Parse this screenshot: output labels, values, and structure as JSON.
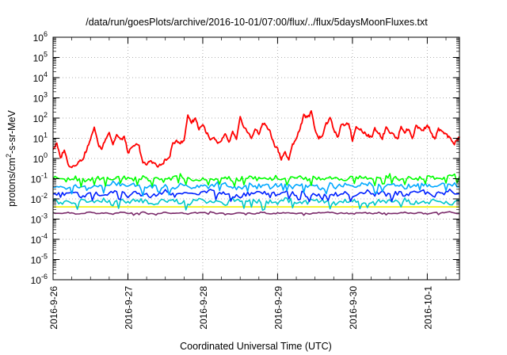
{
  "chart_data": {
    "type": "line",
    "title": "/data/run/goesPlots/archive/2016-10-01/07:00/flux/../flux/5daysMoonFluxes.txt",
    "xlabel": "Coordinated Universal Time (UTC)",
    "ylabel_parts": [
      "protons/cm",
      "2",
      "-s-sr-MeV"
    ],
    "y_scale": "log",
    "ylim_exponents": [
      -6,
      6
    ],
    "y_tick_base": "10",
    "y_tick_exponents": [
      "-6",
      "-5",
      "-4",
      "-3",
      "-2",
      "-1",
      "0",
      "1",
      "2",
      "3",
      "4",
      "5",
      "6"
    ],
    "x_unit": "day",
    "xlim": [
      0,
      5.43
    ],
    "x_ticks": [
      {
        "day": 0,
        "label": "2016-9-26"
      },
      {
        "day": 1,
        "label": "2016-9-27"
      },
      {
        "day": 2,
        "label": "2016-9-28"
      },
      {
        "day": 3,
        "label": "2016-9-29"
      },
      {
        "day": 4,
        "label": "2016-9-30"
      },
      {
        "day": 5,
        "label": "2016-10-1"
      }
    ],
    "grid": true,
    "series": [
      {
        "color": "#ff0000",
        "x": [
          0,
          0.05,
          0.1,
          0.15,
          0.2,
          0.25,
          0.3,
          0.35,
          0.4,
          0.45,
          0.5,
          0.55,
          0.6,
          0.65,
          0.7,
          0.75,
          0.8,
          0.85,
          0.9,
          0.95,
          1.0,
          1.05,
          1.1,
          1.15,
          1.2,
          1.25,
          1.3,
          1.35,
          1.4,
          1.45,
          1.5,
          1.55,
          1.6,
          1.65,
          1.7,
          1.75,
          1.8,
          1.85,
          1.9,
          1.95,
          2.0,
          2.05,
          2.1,
          2.15,
          2.2,
          2.25,
          2.3,
          2.35,
          2.4,
          2.45,
          2.5,
          2.55,
          2.6,
          2.65,
          2.7,
          2.75,
          2.8,
          2.85,
          2.9,
          2.95,
          3.0,
          3.05,
          3.1,
          3.15,
          3.2,
          3.25,
          3.3,
          3.35,
          3.4,
          3.45,
          3.5,
          3.55,
          3.6,
          3.65,
          3.7,
          3.75,
          3.8,
          3.85,
          3.9,
          3.95,
          4.0,
          4.05,
          4.1,
          4.15,
          4.2,
          4.25,
          4.3,
          4.35,
          4.4,
          4.45,
          4.5,
          4.55,
          4.6,
          4.65,
          4.7,
          4.75,
          4.8,
          4.85,
          4.9,
          4.95,
          5.0,
          5.05,
          5.1,
          5.15,
          5.2,
          5.25,
          5.3,
          5.35,
          5.4,
          5.43
        ],
        "y": [
          3,
          5,
          1,
          3,
          0.5,
          0.4,
          0.5,
          0.7,
          1,
          3,
          8,
          40,
          5,
          3,
          10,
          20,
          5,
          15,
          8,
          12,
          2,
          3,
          5,
          4,
          0.6,
          0.5,
          0.8,
          0.6,
          0.4,
          0.5,
          0.8,
          1,
          5,
          8,
          6,
          7,
          150,
          60,
          100,
          30,
          50,
          20,
          8,
          10,
          5,
          8,
          15,
          6,
          20,
          8,
          100,
          40,
          20,
          10,
          30,
          15,
          60,
          40,
          20,
          5,
          3,
          1,
          2,
          0.8,
          5,
          10,
          30,
          150,
          100,
          200,
          30,
          10,
          15,
          50,
          100,
          30,
          10,
          40,
          50,
          60,
          8,
          40,
          30,
          20,
          15,
          10,
          30,
          20,
          10,
          40,
          20,
          15,
          8,
          40,
          20,
          30,
          10,
          40,
          30,
          25,
          50,
          20,
          8,
          30,
          20,
          15,
          10,
          5,
          8,
          12
        ],
        "spike_low": true
      },
      {
        "color": "#00ff00",
        "x": [
          0,
          0.1,
          0.2,
          0.3,
          0.4,
          0.5,
          0.6,
          0.7,
          0.8,
          0.9,
          1.0,
          1.1,
          1.2,
          1.3,
          1.4,
          1.5,
          1.6,
          1.7,
          1.8,
          1.9,
          2.0,
          2.1,
          2.2,
          2.3,
          2.4,
          2.5,
          2.6,
          2.7,
          2.8,
          2.9,
          3.0,
          3.1,
          3.2,
          3.3,
          3.4,
          3.5,
          3.6,
          3.7,
          3.8,
          3.9,
          4.0,
          4.1,
          4.2,
          4.3,
          4.4,
          4.5,
          4.6,
          4.7,
          4.8,
          4.9,
          5.0,
          5.1,
          5.2,
          5.3,
          5.43
        ],
        "y": [
          0.12,
          0.1,
          0.09,
          0.11,
          0.08,
          0.1,
          0.12,
          0.09,
          0.1,
          0.13,
          0.11,
          0.1,
          0.12,
          0.09,
          0.11,
          0.08,
          0.12,
          0.14,
          0.1,
          0.09,
          0.12,
          0.1,
          0.11,
          0.13,
          0.09,
          0.1,
          0.12,
          0.11,
          0.09,
          0.1,
          0.12,
          0.11,
          0.1,
          0.13,
          0.09,
          0.11,
          0.1,
          0.12,
          0.1,
          0.09,
          0.12,
          0.13,
          0.11,
          0.1,
          0.12,
          0.14,
          0.1,
          0.11,
          0.12,
          0.1,
          0.13,
          0.11,
          0.12,
          0.14,
          0.13
        ],
        "dips": true
      },
      {
        "color": "#00a8ff",
        "x": [
          0,
          0.1,
          0.2,
          0.3,
          0.4,
          0.5,
          0.6,
          0.7,
          0.8,
          0.9,
          1.0,
          1.1,
          1.2,
          1.3,
          1.4,
          1.5,
          1.6,
          1.7,
          1.8,
          1.9,
          2.0,
          2.1,
          2.2,
          2.3,
          2.4,
          2.5,
          2.6,
          2.7,
          2.8,
          2.9,
          3.0,
          3.1,
          3.2,
          3.3,
          3.4,
          3.5,
          3.6,
          3.7,
          3.8,
          3.9,
          4.0,
          4.1,
          4.2,
          4.3,
          4.4,
          4.5,
          4.6,
          4.7,
          4.8,
          4.9,
          5.0,
          5.1,
          5.2,
          5.3,
          5.43
        ],
        "y": [
          0.05,
          0.04,
          0.03,
          0.05,
          0.04,
          0.03,
          0.05,
          0.04,
          0.06,
          0.05,
          0.04,
          0.05,
          0.03,
          0.04,
          0.05,
          0.04,
          0.03,
          0.05,
          0.04,
          0.04,
          0.05,
          0.04,
          0.06,
          0.05,
          0.04,
          0.03,
          0.05,
          0.04,
          0.05,
          0.04,
          0.05,
          0.06,
          0.04,
          0.05,
          0.04,
          0.05,
          0.03,
          0.05,
          0.04,
          0.05,
          0.04,
          0.05,
          0.06,
          0.04,
          0.05,
          0.04,
          0.05,
          0.04,
          0.05,
          0.06,
          0.05,
          0.04,
          0.05,
          0.06,
          0.04
        ],
        "dips": true
      },
      {
        "color": "#0020ff",
        "x": [
          0,
          0.1,
          0.2,
          0.3,
          0.4,
          0.5,
          0.6,
          0.7,
          0.8,
          0.9,
          1.0,
          1.1,
          1.2,
          1.3,
          1.4,
          1.5,
          1.6,
          1.7,
          1.8,
          1.9,
          2.0,
          2.1,
          2.2,
          2.3,
          2.4,
          2.5,
          2.6,
          2.7,
          2.8,
          2.9,
          3.0,
          3.1,
          3.2,
          3.3,
          3.4,
          3.5,
          3.6,
          3.7,
          3.8,
          3.9,
          4.0,
          4.1,
          4.2,
          4.3,
          4.4,
          4.5,
          4.6,
          4.7,
          4.8,
          4.9,
          5.0,
          5.1,
          5.2,
          5.3,
          5.43
        ],
        "y": [
          0.02,
          0.015,
          0.025,
          0.02,
          0.012,
          0.018,
          0.02,
          0.015,
          0.025,
          0.02,
          0.015,
          0.02,
          0.018,
          0.012,
          0.02,
          0.025,
          0.015,
          0.02,
          0.018,
          0.015,
          0.02,
          0.025,
          0.018,
          0.02,
          0.015,
          0.012,
          0.02,
          0.018,
          0.02,
          0.015,
          0.02,
          0.025,
          0.018,
          0.02,
          0.015,
          0.02,
          0.012,
          0.02,
          0.018,
          0.02,
          0.015,
          0.02,
          0.025,
          0.018,
          0.02,
          0.015,
          0.02,
          0.018,
          0.02,
          0.025,
          0.02,
          0.015,
          0.02,
          0.025,
          0.018
        ],
        "dips": true
      },
      {
        "color": "#00c8c8",
        "x": [
          0,
          0.1,
          0.2,
          0.3,
          0.4,
          0.5,
          0.6,
          0.7,
          0.8,
          0.9,
          1.0,
          1.1,
          1.2,
          1.3,
          1.4,
          1.5,
          1.6,
          1.7,
          1.8,
          1.9,
          2.0,
          2.1,
          2.2,
          2.3,
          2.4,
          2.5,
          2.6,
          2.7,
          2.8,
          2.9,
          3.0,
          3.1,
          3.2,
          3.3,
          3.4,
          3.5,
          3.6,
          3.7,
          3.8,
          3.9,
          4.0,
          4.1,
          4.2,
          4.3,
          4.4,
          4.5,
          4.6,
          4.7,
          4.8,
          4.9,
          5.0,
          5.1,
          5.2,
          5.3,
          5.43
        ],
        "y": [
          0.009,
          0.007,
          0.008,
          0.006,
          0.009,
          0.007,
          0.008,
          0.009,
          0.006,
          0.008,
          0.007,
          0.009,
          0.008,
          0.006,
          0.007,
          0.009,
          0.008,
          0.007,
          0.006,
          0.008,
          0.009,
          0.007,
          0.008,
          0.006,
          0.009,
          0.007,
          0.008,
          0.009,
          0.006,
          0.008,
          0.007,
          0.009,
          0.008,
          0.006,
          0.007,
          0.009,
          0.008,
          0.007,
          0.006,
          0.008,
          0.009,
          0.007,
          0.008,
          0.006,
          0.009,
          0.007,
          0.008,
          0.009,
          0.006,
          0.008,
          0.007,
          0.009,
          0.008,
          0.006,
          0.008
        ],
        "dips": true
      },
      {
        "color": "#f0f000",
        "x": [
          0,
          5.43
        ],
        "y": [
          0.004,
          0.004
        ]
      },
      {
        "color": "#7a2a6a",
        "x": [
          0,
          0.1,
          0.2,
          0.3,
          0.4,
          0.5,
          0.6,
          0.7,
          0.8,
          0.9,
          1.0,
          1.1,
          1.2,
          1.3,
          1.4,
          1.5,
          1.6,
          1.7,
          1.8,
          1.9,
          2.0,
          2.1,
          2.2,
          2.3,
          2.4,
          2.5,
          2.6,
          2.7,
          2.8,
          2.9,
          3.0,
          3.1,
          3.2,
          3.3,
          3.4,
          3.5,
          3.6,
          3.7,
          3.8,
          3.9,
          4.0,
          4.1,
          4.2,
          4.3,
          4.4,
          4.5,
          4.6,
          4.7,
          4.8,
          4.9,
          5.0,
          5.1,
          5.2,
          5.3,
          5.43
        ],
        "y": [
          0.002,
          0.0019,
          0.0021,
          0.0018,
          0.002,
          0.0022,
          0.0019,
          0.002,
          0.0018,
          0.0021,
          0.002,
          0.0019,
          0.0022,
          0.0018,
          0.002,
          0.0021,
          0.0019,
          0.002,
          0.0018,
          0.0021,
          0.002,
          0.0022,
          0.0019,
          0.002,
          0.0018,
          0.0021,
          0.002,
          0.0019,
          0.0022,
          0.0018,
          0.002,
          0.0021,
          0.0019,
          0.002,
          0.0018,
          0.0021,
          0.002,
          0.0022,
          0.0019,
          0.002,
          0.0018,
          0.0021,
          0.002,
          0.0019,
          0.0022,
          0.0018,
          0.002,
          0.0021,
          0.0019,
          0.002,
          0.0018,
          0.0021,
          0.002,
          0.0022,
          0.0019
        ]
      }
    ]
  }
}
